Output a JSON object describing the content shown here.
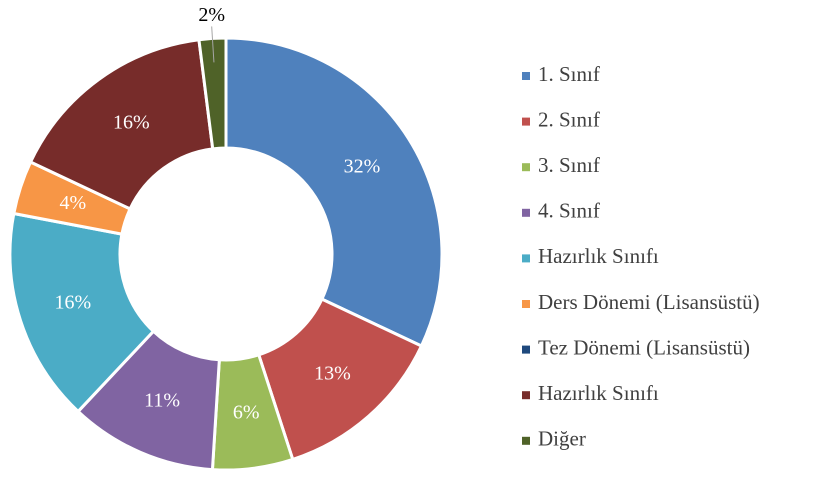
{
  "chart_data": {
    "type": "donut",
    "categories": [
      "1. Sınıf",
      "2. Sınıf",
      "3. Sınıf",
      "4. Sınıf",
      "Hazırlık Sınıfı",
      "Ders Dönemi (Lisansüstü)",
      "Tez Dönemi (Lisansüstü)",
      "Hazırlık Sınıfı",
      "Diğer"
    ],
    "values": [
      32,
      13,
      6,
      11,
      16,
      4,
      0,
      16,
      2
    ],
    "value_labels": [
      "32%",
      "13%",
      "6%",
      "11%",
      "16%",
      "4%",
      null,
      "16%",
      "2%"
    ],
    "colors": [
      "#4f81bd",
      "#c0504d",
      "#9bbb59",
      "#8064a2",
      "#4bacc6",
      "#f79646",
      "#1f497d",
      "#772c2a",
      "#4f6228"
    ],
    "legend": "right"
  }
}
